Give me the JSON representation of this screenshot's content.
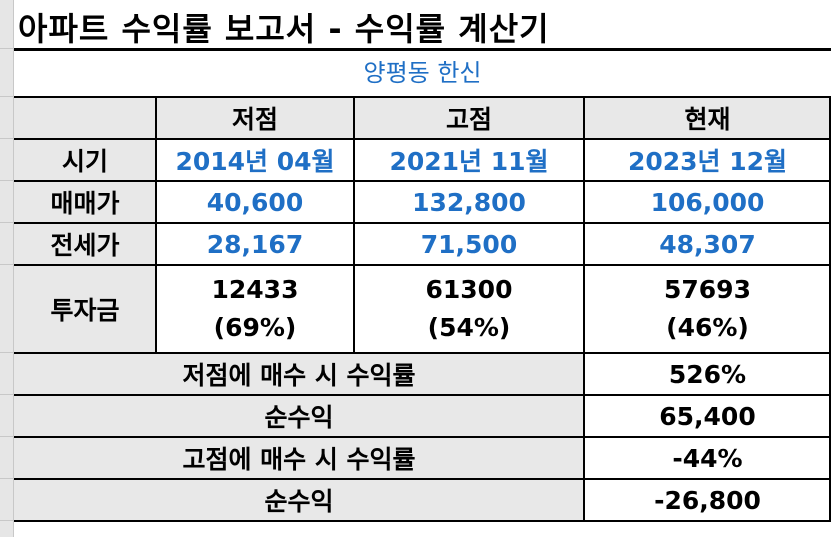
{
  "title": "아파트 수익률 보고서 - 수익률 계산기",
  "apartment": "양평동 한신",
  "columns": [
    "저점",
    "고점",
    "현재"
  ],
  "rows": {
    "period": {
      "label": "시기",
      "values": [
        "2014년 04월",
        "2021년 11월",
        "2023년 12월"
      ]
    },
    "sale_price": {
      "label": "매매가",
      "values": [
        "40,600",
        "132,800",
        "106,000"
      ]
    },
    "jeonse_price": {
      "label": "전세가",
      "values": [
        "28,167",
        "71,500",
        "48,307"
      ]
    },
    "investment": {
      "label": "투자금",
      "amounts": [
        "12433",
        "61300",
        "57693"
      ],
      "ratios": [
        "(69%)",
        "(54%)",
        "(46%)"
      ]
    }
  },
  "summary": [
    {
      "label": "저점에 매수 시 수익률",
      "value": "526%"
    },
    {
      "label": "순수익",
      "value": "65,400"
    },
    {
      "label": "고점에 매수 시 수익률",
      "value": "-44%"
    },
    {
      "label": "순수익",
      "value": "-26,800"
    }
  ]
}
